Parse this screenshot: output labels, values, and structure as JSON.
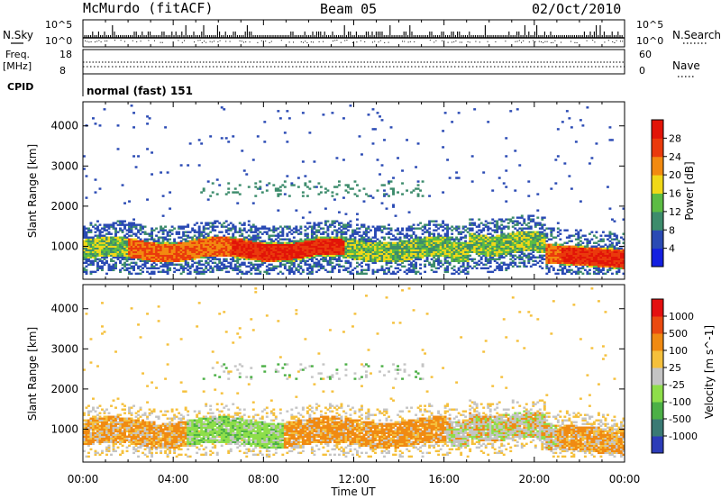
{
  "header": {
    "station": "McMurdo (fitACF)",
    "beam": "Beam 05",
    "date": "02/Oct/2010"
  },
  "top_panels": {
    "nsky_label": "N.Sky",
    "nsky_ticks": [
      "10^5",
      "10^0"
    ],
    "nsearch_label": "N.Search",
    "nsearch_ticks": [
      "10^5",
      "10^0"
    ],
    "freq_label_1": "Freq.",
    "freq_label_2": "[MHz]",
    "freq_ticks": [
      "18",
      "8"
    ],
    "nave_label": "Nave",
    "nave_ticks": [
      "60",
      "0"
    ],
    "cpid_label": "CPID",
    "cpid_value": "normal (fast) 151"
  },
  "chart_data": [
    {
      "type": "heatmap",
      "title": "",
      "xlabel": "",
      "ylabel": "Slant Range [km]",
      "x_ticks": [
        "00:00",
        "04:00",
        "08:00",
        "12:00",
        "16:00",
        "20:00",
        "00:00"
      ],
      "xlim_hours": [
        0,
        24
      ],
      "ylim": [
        180,
        4600
      ],
      "y_ticks": [
        1000,
        2000,
        3000,
        4000
      ],
      "colorbar_label": "Power [dB]",
      "colorbar_ticks": [
        4,
        8,
        12,
        16,
        20,
        24,
        28
      ],
      "colorbar_colors": [
        "#1420e0",
        "#2a4ab4",
        "#3d8c6c",
        "#5cbc44",
        "#f0d818",
        "#f28a10",
        "#ea3a0c",
        "#e21408"
      ]
    },
    {
      "type": "heatmap",
      "title": "",
      "xlabel": "Time UT",
      "ylabel": "Slant Range [km]",
      "x_ticks": [
        "00:00",
        "04:00",
        "08:00",
        "12:00",
        "16:00",
        "20:00",
        "00:00"
      ],
      "xlim_hours": [
        0,
        24
      ],
      "ylim": [
        180,
        4600
      ],
      "y_ticks": [
        1000,
        2000,
        3000,
        4000
      ],
      "colorbar_label": "Velocity [m s^-1]",
      "colorbar_ticks": [
        "1000",
        "500",
        "100",
        "25",
        "-25",
        "-100",
        "-500",
        "-1000"
      ],
      "colorbar_colors": [
        "#2c3cb8",
        "#3a7a74",
        "#4cb046",
        "#8ede4a",
        "#c4c4c4",
        "#f5c03c",
        "#f08a12",
        "#ea4a10",
        "#e41010"
      ]
    }
  ]
}
